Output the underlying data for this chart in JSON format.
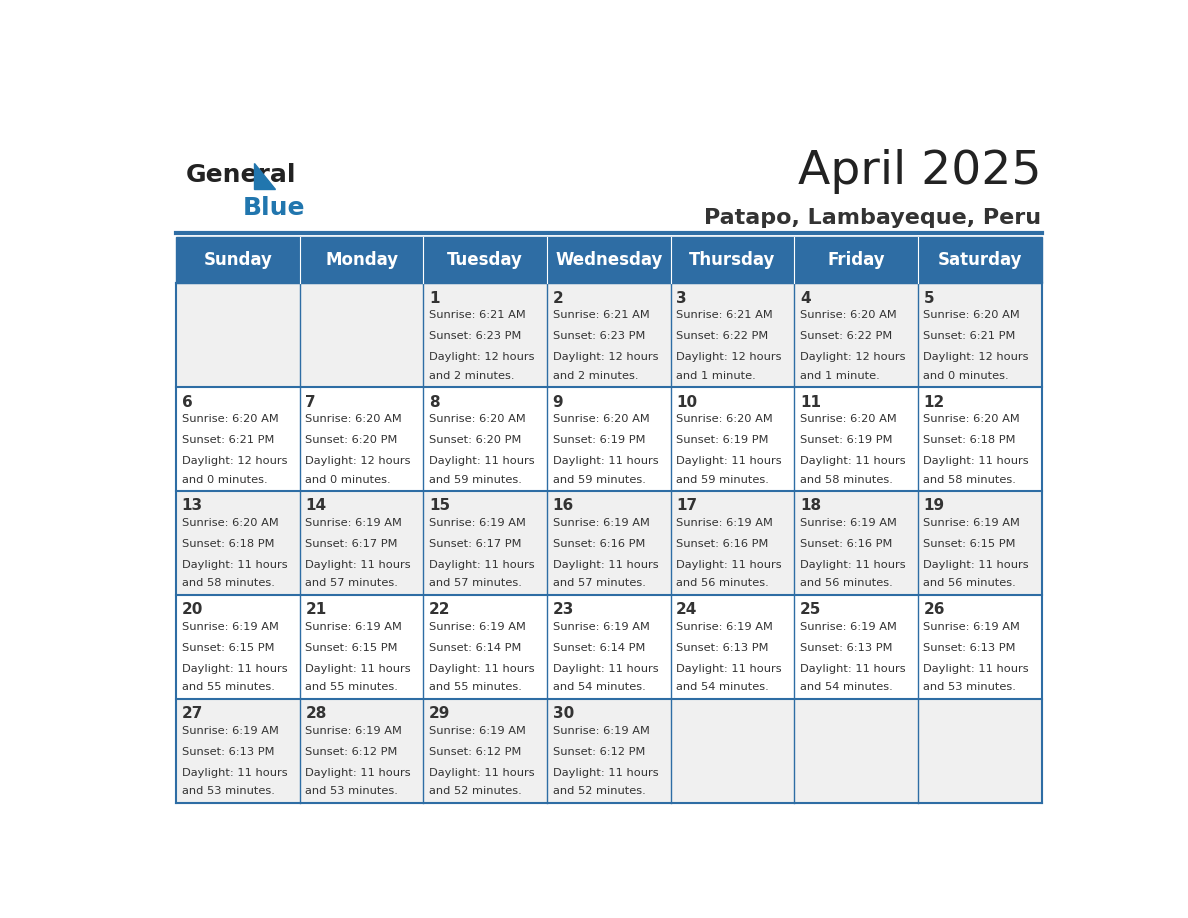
{
  "title": "April 2025",
  "subtitle": "Patapo, Lambayeque, Peru",
  "days_of_week": [
    "Sunday",
    "Monday",
    "Tuesday",
    "Wednesday",
    "Thursday",
    "Friday",
    "Saturday"
  ],
  "header_bg": "#2E6DA4",
  "header_text": "#FFFFFF",
  "row_bg_light": "#F0F0F0",
  "row_bg_white": "#FFFFFF",
  "cell_text": "#333333",
  "line_color": "#2E6DA4",
  "title_color": "#222222",
  "subtitle_color": "#333333",
  "logo_general_color": "#222222",
  "logo_blue_color": "#2176AE",
  "calendar_data": [
    [
      {
        "day": null,
        "sunrise": null,
        "sunset": null,
        "daylight": null
      },
      {
        "day": null,
        "sunrise": null,
        "sunset": null,
        "daylight": null
      },
      {
        "day": 1,
        "sunrise": "6:21 AM",
        "sunset": "6:23 PM",
        "daylight": "12 hours\nand 2 minutes."
      },
      {
        "day": 2,
        "sunrise": "6:21 AM",
        "sunset": "6:23 PM",
        "daylight": "12 hours\nand 2 minutes."
      },
      {
        "day": 3,
        "sunrise": "6:21 AM",
        "sunset": "6:22 PM",
        "daylight": "12 hours\nand 1 minute."
      },
      {
        "day": 4,
        "sunrise": "6:20 AM",
        "sunset": "6:22 PM",
        "daylight": "12 hours\nand 1 minute."
      },
      {
        "day": 5,
        "sunrise": "6:20 AM",
        "sunset": "6:21 PM",
        "daylight": "12 hours\nand 0 minutes."
      }
    ],
    [
      {
        "day": 6,
        "sunrise": "6:20 AM",
        "sunset": "6:21 PM",
        "daylight": "12 hours\nand 0 minutes."
      },
      {
        "day": 7,
        "sunrise": "6:20 AM",
        "sunset": "6:20 PM",
        "daylight": "12 hours\nand 0 minutes."
      },
      {
        "day": 8,
        "sunrise": "6:20 AM",
        "sunset": "6:20 PM",
        "daylight": "11 hours\nand 59 minutes."
      },
      {
        "day": 9,
        "sunrise": "6:20 AM",
        "sunset": "6:19 PM",
        "daylight": "11 hours\nand 59 minutes."
      },
      {
        "day": 10,
        "sunrise": "6:20 AM",
        "sunset": "6:19 PM",
        "daylight": "11 hours\nand 59 minutes."
      },
      {
        "day": 11,
        "sunrise": "6:20 AM",
        "sunset": "6:19 PM",
        "daylight": "11 hours\nand 58 minutes."
      },
      {
        "day": 12,
        "sunrise": "6:20 AM",
        "sunset": "6:18 PM",
        "daylight": "11 hours\nand 58 minutes."
      }
    ],
    [
      {
        "day": 13,
        "sunrise": "6:20 AM",
        "sunset": "6:18 PM",
        "daylight": "11 hours\nand 58 minutes."
      },
      {
        "day": 14,
        "sunrise": "6:19 AM",
        "sunset": "6:17 PM",
        "daylight": "11 hours\nand 57 minutes."
      },
      {
        "day": 15,
        "sunrise": "6:19 AM",
        "sunset": "6:17 PM",
        "daylight": "11 hours\nand 57 minutes."
      },
      {
        "day": 16,
        "sunrise": "6:19 AM",
        "sunset": "6:16 PM",
        "daylight": "11 hours\nand 57 minutes."
      },
      {
        "day": 17,
        "sunrise": "6:19 AM",
        "sunset": "6:16 PM",
        "daylight": "11 hours\nand 56 minutes."
      },
      {
        "day": 18,
        "sunrise": "6:19 AM",
        "sunset": "6:16 PM",
        "daylight": "11 hours\nand 56 minutes."
      },
      {
        "day": 19,
        "sunrise": "6:19 AM",
        "sunset": "6:15 PM",
        "daylight": "11 hours\nand 56 minutes."
      }
    ],
    [
      {
        "day": 20,
        "sunrise": "6:19 AM",
        "sunset": "6:15 PM",
        "daylight": "11 hours\nand 55 minutes."
      },
      {
        "day": 21,
        "sunrise": "6:19 AM",
        "sunset": "6:15 PM",
        "daylight": "11 hours\nand 55 minutes."
      },
      {
        "day": 22,
        "sunrise": "6:19 AM",
        "sunset": "6:14 PM",
        "daylight": "11 hours\nand 55 minutes."
      },
      {
        "day": 23,
        "sunrise": "6:19 AM",
        "sunset": "6:14 PM",
        "daylight": "11 hours\nand 54 minutes."
      },
      {
        "day": 24,
        "sunrise": "6:19 AM",
        "sunset": "6:13 PM",
        "daylight": "11 hours\nand 54 minutes."
      },
      {
        "day": 25,
        "sunrise": "6:19 AM",
        "sunset": "6:13 PM",
        "daylight": "11 hours\nand 54 minutes."
      },
      {
        "day": 26,
        "sunrise": "6:19 AM",
        "sunset": "6:13 PM",
        "daylight": "11 hours\nand 53 minutes."
      }
    ],
    [
      {
        "day": 27,
        "sunrise": "6:19 AM",
        "sunset": "6:13 PM",
        "daylight": "11 hours\nand 53 minutes."
      },
      {
        "day": 28,
        "sunrise": "6:19 AM",
        "sunset": "6:12 PM",
        "daylight": "11 hours\nand 53 minutes."
      },
      {
        "day": 29,
        "sunrise": "6:19 AM",
        "sunset": "6:12 PM",
        "daylight": "11 hours\nand 52 minutes."
      },
      {
        "day": 30,
        "sunrise": "6:19 AM",
        "sunset": "6:12 PM",
        "daylight": "11 hours\nand 52 minutes."
      },
      {
        "day": null,
        "sunrise": null,
        "sunset": null,
        "daylight": null
      },
      {
        "day": null,
        "sunrise": null,
        "sunset": null,
        "daylight": null
      },
      {
        "day": null,
        "sunrise": null,
        "sunset": null,
        "daylight": null
      }
    ]
  ]
}
